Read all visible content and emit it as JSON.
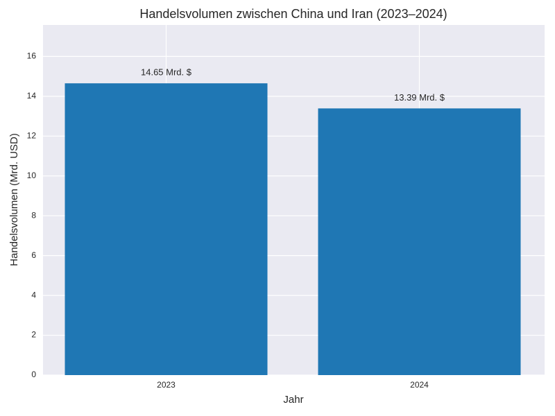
{
  "chart_data": {
    "type": "bar",
    "title": "Handelsvolumen zwischen China und Iran (2023–2024)",
    "x_label": "Jahr",
    "y_label": "Handelsvolumen (Mrd. USD)",
    "categories": [
      "2023",
      "2024"
    ],
    "values": [
      14.65,
      13.39
    ],
    "value_labels": [
      "14.65 Mrd. $",
      "13.39 Mrd. $"
    ],
    "color": "#1f77b4",
    "ylim": [
      0,
      17.58
    ],
    "yticks": [
      0,
      2,
      4,
      6,
      8,
      10,
      12,
      14,
      16
    ],
    "grid": true
  }
}
